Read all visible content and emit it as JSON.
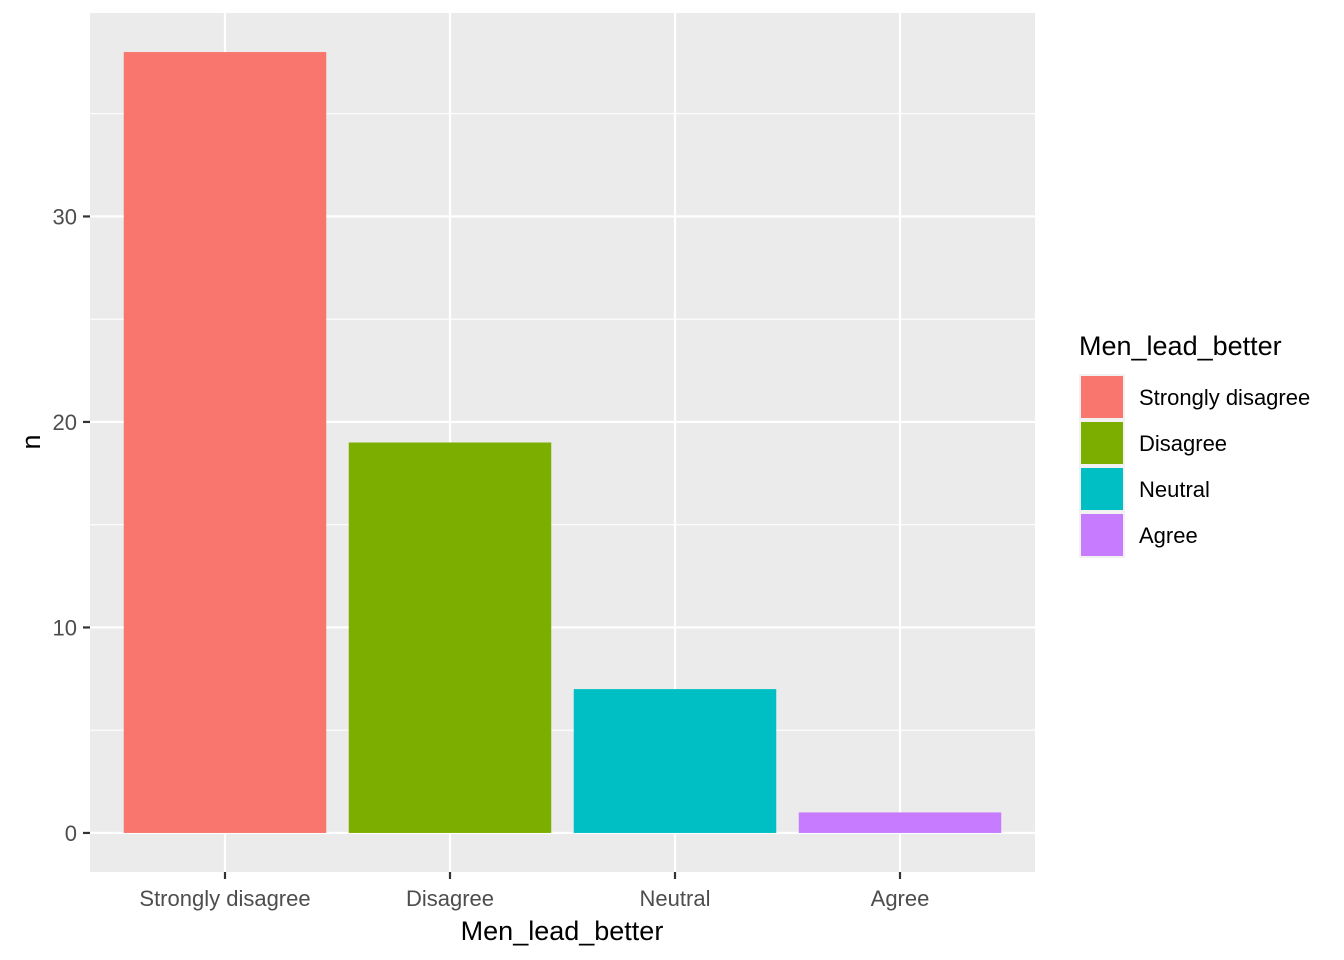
{
  "chart_data": {
    "type": "bar",
    "categories": [
      "Strongly disagree",
      "Disagree",
      "Neutral",
      "Agree"
    ],
    "values": [
      38,
      19,
      7,
      1
    ],
    "xlabel": "Men_lead_better",
    "ylabel": "n",
    "ylim": [
      -1.9,
      39.9
    ],
    "yticks": [
      0,
      10,
      20,
      30
    ],
    "yticks_labels": [
      "0",
      "10",
      "20",
      "30"
    ],
    "grid": true,
    "legend": {
      "title": "Men_lead_better",
      "placement": "right",
      "entries": [
        "Strongly disagree",
        "Disagree",
        "Neutral",
        "Agree"
      ]
    },
    "colors": [
      "#F8766D",
      "#7CAE00",
      "#00BFC4",
      "#C77CFF"
    ],
    "panel_background": "#EBEBEB",
    "grid_color": "#FFFFFF"
  }
}
